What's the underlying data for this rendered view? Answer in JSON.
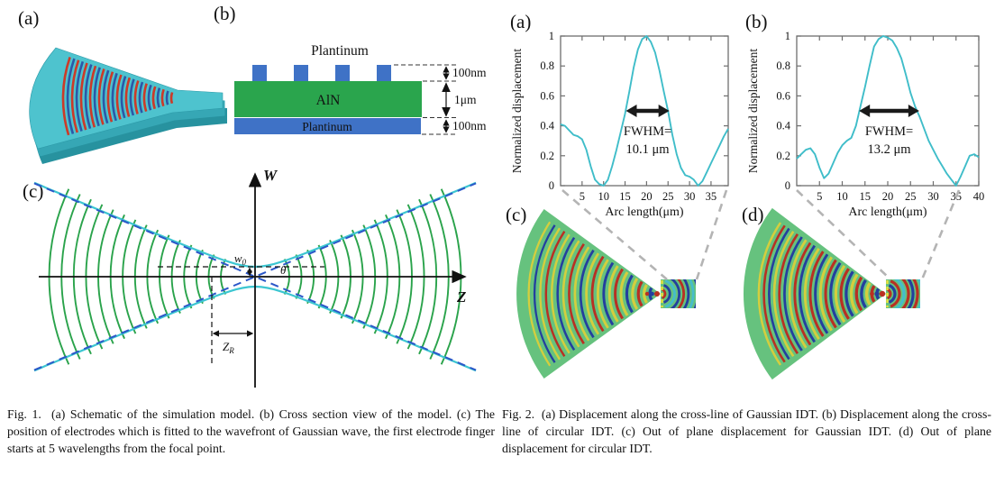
{
  "figure1": {
    "panels": {
      "a": "(a)",
      "b": "(b)",
      "c": "(c)"
    },
    "cross_section": {
      "top_electrode_label": "Plantinum",
      "film_label": "AlN",
      "bottom_electrode_label": "Plantinum",
      "dim_top": "100nm",
      "dim_film": "1μm",
      "dim_bottom": "100nm"
    },
    "gaussian_diagram": {
      "axis_w": "W",
      "axis_z": "Z",
      "waist_main": "w",
      "waist_sub": "0",
      "theta": "θ",
      "rayleigh_main": "Z",
      "rayleigh_sub": "R"
    },
    "caption": "Fig. 1.  (a) Schematic of the simulation model. (b) Cross section view of the model. (c) The position of electrodes which is fitted to the wavefront of Gaussian wave, the first electrode finger starts at 5 wavelengths from the focal point."
  },
  "figure2": {
    "panels": {
      "a": "(a)",
      "b": "(b)",
      "c": "(c)",
      "d": "(d)"
    },
    "caption": "Fig. 2.  (a) Displacement along the cross-line of Gaussian IDT. (b) Displacement along the cross-line of circular IDT. (c) Out of plane displacement for Gaussian IDT. (d) Out of plane displacement for circular IDT."
  },
  "colors": {
    "curve": "#3fbdc9",
    "device_teal": "#4ec3ce",
    "aln_green": "#2aa54d",
    "platinum_blue": "#3f72c6",
    "wavefront_green": "#2aa34b",
    "envelope_cyan": "#3cc6d1",
    "asymptote_blue": "#2b57c8",
    "fan_green": "#66c27e",
    "fringe_blue": "#243f9e",
    "fringe_red": "#b93022",
    "fringe_yellow": "#d4ce3e"
  },
  "chart_data": [
    {
      "type": "line",
      "title": "",
      "xlabel": "Arc length(μm)",
      "ylabel": "Normalized displacement",
      "xlim": [
        0,
        39
      ],
      "ylim": [
        0,
        1
      ],
      "xticks": [
        5,
        10,
        15,
        20,
        25,
        30,
        35
      ],
      "yticks": [
        0,
        0.2,
        0.4,
        0.6,
        0.8,
        1
      ],
      "ytick_labels": [
        "0",
        "0.2",
        "0.4",
        "0.6",
        "0.8",
        "1"
      ],
      "grid": false,
      "legend": null,
      "line_color": "#3fbdc9",
      "x": [
        0,
        1,
        2,
        3,
        4,
        5,
        6,
        7,
        8,
        9,
        10,
        11,
        12,
        13,
        14,
        15,
        16,
        17,
        18,
        19,
        20,
        21,
        22,
        23,
        24,
        25,
        26,
        27,
        28,
        29,
        30,
        31,
        32,
        33,
        34,
        35,
        36,
        37,
        38,
        39
      ],
      "values": [
        0.41,
        0.4,
        0.37,
        0.34,
        0.33,
        0.31,
        0.24,
        0.13,
        0.04,
        0.01,
        0.0,
        0.04,
        0.13,
        0.24,
        0.36,
        0.48,
        0.63,
        0.79,
        0.91,
        0.98,
        1.0,
        0.96,
        0.89,
        0.77,
        0.63,
        0.5,
        0.34,
        0.21,
        0.12,
        0.07,
        0.06,
        0.04,
        0.0,
        0.03,
        0.09,
        0.15,
        0.21,
        0.27,
        0.33,
        0.38
      ],
      "annotation": {
        "label_lines": [
          "FWHM=",
          "10.1 μm"
        ],
        "arrow": {
          "x1": 15.2,
          "x2": 25.3,
          "y": 0.5
        }
      }
    },
    {
      "type": "line",
      "title": "",
      "xlabel": "Arc length(μm)",
      "ylabel": "Normalized displacement",
      "xlim": [
        0,
        40
      ],
      "ylim": [
        0,
        1
      ],
      "xticks": [
        5,
        10,
        15,
        20,
        25,
        30,
        35,
        40
      ],
      "yticks": [
        0,
        0.2,
        0.4,
        0.6,
        0.8,
        1
      ],
      "ytick_labels": [
        "0",
        "0.2",
        "0.4",
        "0.6",
        "0.8",
        "1"
      ],
      "grid": false,
      "legend": null,
      "line_color": "#3fbdc9",
      "x": [
        0,
        1,
        2,
        3,
        4,
        5,
        6,
        7,
        8,
        9,
        10,
        11,
        12,
        13,
        14,
        15,
        16,
        17,
        18,
        19,
        20,
        21,
        22,
        23,
        24,
        25,
        26,
        27,
        28,
        29,
        30,
        31,
        32,
        33,
        34,
        35,
        36,
        37,
        38,
        39,
        40
      ],
      "values": [
        0.18,
        0.21,
        0.24,
        0.25,
        0.21,
        0.12,
        0.05,
        0.08,
        0.15,
        0.22,
        0.27,
        0.3,
        0.32,
        0.4,
        0.53,
        0.66,
        0.8,
        0.93,
        0.98,
        1.0,
        0.99,
        0.97,
        0.92,
        0.85,
        0.74,
        0.62,
        0.53,
        0.46,
        0.38,
        0.3,
        0.24,
        0.18,
        0.13,
        0.08,
        0.04,
        0.0,
        0.06,
        0.13,
        0.2,
        0.21,
        0.19
      ],
      "annotation": {
        "label_lines": [
          "FWHM=",
          "13.2 μm"
        ],
        "arrow": {
          "x1": 13.7,
          "x2": 26.9,
          "y": 0.5
        }
      }
    }
  ]
}
